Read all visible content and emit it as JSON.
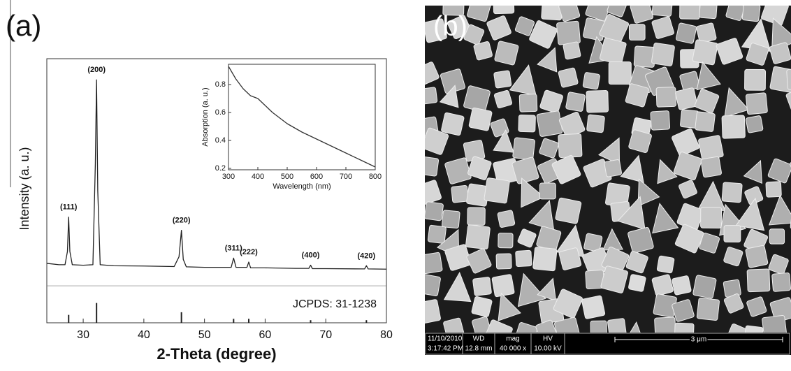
{
  "chart_data": [
    {
      "type": "line",
      "panel_label": "(a)",
      "xlabel": "2-Theta (degree)",
      "ylabel": "Intensity (a. u.)",
      "xlim": [
        24,
        80
      ],
      "xticks": [
        30,
        40,
        50,
        60,
        70,
        80
      ],
      "ylim": [
        0,
        100
      ],
      "series": [
        {
          "color": "#222222",
          "x": [
            24,
            26,
            27,
            27.4,
            27.6,
            27.8,
            28.2,
            30,
            31.6,
            32.0,
            32.2,
            32.4,
            32.8,
            35,
            40,
            45,
            45.8,
            46.2,
            46.5,
            47,
            50,
            54.4,
            54.8,
            55.2,
            57.0,
            57.3,
            57.6,
            60,
            65,
            67.2,
            67.5,
            67.8,
            70,
            76.4,
            76.7,
            77.0,
            80
          ],
          "values": [
            22.5,
            22,
            22,
            27,
            40,
            27,
            22,
            21.8,
            22,
            60,
            92,
            50,
            22,
            21.6,
            21.5,
            21.3,
            25,
            35,
            24,
            21.2,
            21,
            21,
            24.5,
            21,
            21,
            23,
            20.8,
            20.8,
            20.6,
            20.6,
            21.8,
            20.5,
            20.5,
            20.4,
            21.6,
            20.4,
            20.3
          ]
        }
      ],
      "reference": {
        "label": "JCPDS: 31-1238",
        "color": "#222222",
        "x": [
          27.6,
          32.2,
          46.2,
          54.8,
          57.3,
          67.5,
          76.7
        ],
        "values": [
          3,
          7.5,
          4,
          1.5,
          1.5,
          1,
          1
        ]
      },
      "annotations": [
        {
          "text": "(111)",
          "x": 27.6,
          "y": 40
        },
        {
          "text": "(200)",
          "x": 32.2,
          "y": 92
        },
        {
          "text": "(220)",
          "x": 46.2,
          "y": 35
        },
        {
          "text": "(311)",
          "x": 54.8,
          "y": 24.5
        },
        {
          "text": "(222)",
          "x": 57.3,
          "y": 23
        },
        {
          "text": "(400)",
          "x": 67.5,
          "y": 21.8
        },
        {
          "text": "(420)",
          "x": 76.7,
          "y": 21.6
        }
      ]
    },
    {
      "type": "line",
      "xlabel": "Wavelength (nm)",
      "ylabel": "Absorption (a. u.)",
      "xlim": [
        300,
        800
      ],
      "xticks": [
        300,
        400,
        500,
        600,
        700,
        800
      ],
      "ylim": [
        0.19,
        0.945
      ],
      "yticks": [
        0.2,
        0.4,
        0.6,
        0.8
      ],
      "series": [
        {
          "color": "#333333",
          "x": [
            300,
            325,
            350,
            375,
            400,
            425,
            450,
            500,
            550,
            600,
            650,
            700,
            750,
            800
          ],
          "values": [
            0.93,
            0.84,
            0.77,
            0.72,
            0.7,
            0.65,
            0.6,
            0.52,
            0.46,
            0.41,
            0.36,
            0.31,
            0.26,
            0.21
          ]
        }
      ]
    }
  ],
  "sem_image": {
    "label": "(b)",
    "info_bar": {
      "date": "11/10/2010",
      "time": "3:17:42 PM",
      "wd_label": "WD",
      "wd": "12.8 mm",
      "mag_label": "mag",
      "mag": "40 000 x",
      "hv_label": "HV",
      "hv": "10.00 kV",
      "scale": "3 μm"
    }
  }
}
